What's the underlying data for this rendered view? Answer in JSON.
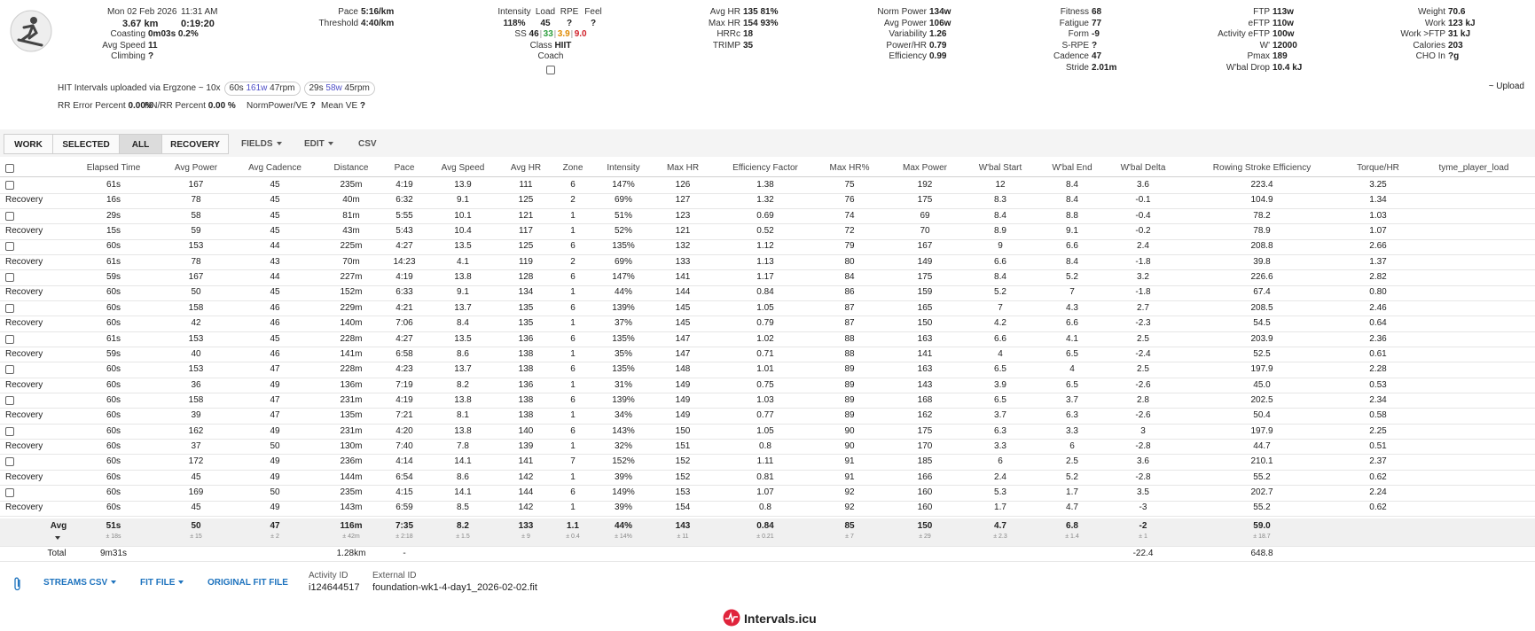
{
  "header": {
    "date": "Mon 02 Feb 2026",
    "time": "11:31 AM",
    "distance": "3.67 km",
    "duration": "0:19:20",
    "groups": [
      {
        "items": [
          {
            "label": "Coasting",
            "value": "0m03s 0.2%"
          },
          {
            "label": "Avg Speed",
            "value": "11"
          },
          {
            "label": "Climbing",
            "value": "?"
          }
        ]
      },
      {
        "items": [
          {
            "label": "Pace",
            "value": "5:16/km"
          },
          {
            "label": "Threshold",
            "value": "4:40/km"
          }
        ]
      },
      {
        "items": [
          {
            "label": "Avg HR",
            "value": "135 81%"
          },
          {
            "label": "Max HR",
            "value": "154 93%"
          },
          {
            "label": "HRRc",
            "value": "18"
          },
          {
            "label": "TRIMP",
            "value": "35"
          }
        ]
      },
      {
        "items": [
          {
            "label": "Norm Power",
            "value": "134w"
          },
          {
            "label": "Avg Power",
            "value": "106w"
          },
          {
            "label": "Variability",
            "value": "1.26"
          },
          {
            "label": "Power/HR",
            "value": "0.79"
          },
          {
            "label": "Efficiency",
            "value": "0.99"
          }
        ]
      },
      {
        "items": [
          {
            "label": "Fitness",
            "value": "68"
          },
          {
            "label": "Fatigue",
            "value": "77"
          },
          {
            "label": "Form",
            "value": "-9"
          },
          {
            "label": "S-RPE",
            "value": "?"
          },
          {
            "label": "Cadence",
            "value": "47"
          },
          {
            "label": "Stride",
            "value": "2.01m"
          }
        ]
      },
      {
        "items": [
          {
            "label": "FTP",
            "value": "113w"
          },
          {
            "label": "eFTP",
            "value": "110w"
          },
          {
            "label": "Activity eFTP",
            "value": "100w"
          },
          {
            "label": "W'",
            "value": "12000"
          },
          {
            "label": "Pmax",
            "value": "189"
          },
          {
            "label": "W'bal Drop",
            "value": "10.4 kJ"
          }
        ]
      },
      {
        "items": [
          {
            "label": "Weight",
            "value": "70.6"
          },
          {
            "label": "Work",
            "value": "123 kJ"
          },
          {
            "label": "Work >FTP",
            "value": "31 kJ"
          },
          {
            "label": "Calories",
            "value": "203"
          },
          {
            "label": "CHO In",
            "value": "?g"
          }
        ]
      }
    ],
    "effort": {
      "columns": [
        {
          "label": "Intensity",
          "value": "118%"
        },
        {
          "label": "Load",
          "value": "45"
        },
        {
          "label": "RPE",
          "value": "?"
        },
        {
          "label": "Feel",
          "value": "?"
        }
      ],
      "ss": {
        "label": "SS",
        "values": [
          "46",
          "33",
          "3.9",
          "9.0"
        ],
        "colors": [
          "#222222",
          "#2e9e3e",
          "#e08a00",
          "#d0202a"
        ]
      },
      "class": {
        "label": "Class",
        "value": "HIIT"
      },
      "coach": "Coach"
    }
  },
  "intervals": {
    "text": "HIT Intervals uploaded via Ergzone ~ 10x",
    "chips": [
      {
        "duration": "60s",
        "power": "161w",
        "cadence": "47rpm"
      },
      {
        "duration": "29s",
        "power": "58w",
        "cadence": "45rpm"
      }
    ],
    "upload": "~ Upload"
  },
  "hrv": [
    {
      "label": "RR Error Percent",
      "value": "0.00%"
    },
    {
      "label": "NN/RR Percent",
      "value": "0.00 %"
    },
    {
      "label": "NormPower/VE",
      "value": "?"
    },
    {
      "label": "Mean VE",
      "value": "?"
    }
  ],
  "tabs": {
    "buttons": [
      "WORK",
      "SELECTED",
      "ALL",
      "RECOVERY"
    ],
    "active": 2,
    "menus": [
      {
        "label": "FIELDS",
        "dropdown": true
      },
      {
        "label": "EDIT",
        "dropdown": true
      },
      {
        "label": "CSV",
        "dropdown": false
      }
    ]
  },
  "table": {
    "columns": [
      null,
      "Elapsed Time",
      "Avg Power",
      "Avg Cadence",
      "Distance",
      "Pace",
      "Avg Speed",
      "Avg HR",
      "Zone",
      "Intensity",
      "Max HR",
      "Efficiency Factor",
      "Max HR%",
      "Max Power",
      "W'bal Start",
      "W'bal End",
      "W'bal Delta",
      "Rowing Stroke Efficiency",
      "Torque/HR",
      "tyme_player_load"
    ],
    "rows": [
      [
        null,
        "61s",
        "167",
        "45",
        "235m",
        "4:19",
        "13.9",
        "111",
        "6",
        "147%",
        "126",
        "1.38",
        "75",
        "192",
        "12",
        "8.4",
        "3.6",
        "223.4",
        "3.25",
        null
      ],
      [
        "Recovery",
        "16s",
        "78",
        "45",
        "40m",
        "6:32",
        "9.1",
        "125",
        "2",
        "69%",
        "127",
        "1.32",
        "76",
        "175",
        "8.3",
        "8.4",
        "-0.1",
        "104.9",
        "1.34",
        null
      ],
      [
        null,
        "29s",
        "58",
        "45",
        "81m",
        "5:55",
        "10.1",
        "121",
        "1",
        "51%",
        "123",
        "0.69",
        "74",
        "69",
        "8.4",
        "8.8",
        "-0.4",
        "78.2",
        "1.03",
        null
      ],
      [
        "Recovery",
        "15s",
        "59",
        "45",
        "43m",
        "5:43",
        "10.4",
        "117",
        "1",
        "52%",
        "121",
        "0.52",
        "72",
        "70",
        "8.9",
        "9.1",
        "-0.2",
        "78.9",
        "1.07",
        null
      ],
      [
        null,
        "60s",
        "153",
        "44",
        "225m",
        "4:27",
        "13.5",
        "125",
        "6",
        "135%",
        "132",
        "1.12",
        "79",
        "167",
        "9",
        "6.6",
        "2.4",
        "208.8",
        "2.66",
        null
      ],
      [
        "Recovery",
        "61s",
        "78",
        "43",
        "70m",
        "14:23",
        "4.1",
        "119",
        "2",
        "69%",
        "133",
        "1.13",
        "80",
        "149",
        "6.6",
        "8.4",
        "-1.8",
        "39.8",
        "1.37",
        null
      ],
      [
        null,
        "59s",
        "167",
        "44",
        "227m",
        "4:19",
        "13.8",
        "128",
        "6",
        "147%",
        "141",
        "1.17",
        "84",
        "175",
        "8.4",
        "5.2",
        "3.2",
        "226.6",
        "2.82",
        null
      ],
      [
        "Recovery",
        "60s",
        "50",
        "45",
        "152m",
        "6:33",
        "9.1",
        "134",
        "1",
        "44%",
        "144",
        "0.84",
        "86",
        "159",
        "5.2",
        "7",
        "-1.8",
        "67.4",
        "0.80",
        null
      ],
      [
        null,
        "60s",
        "158",
        "46",
        "229m",
        "4:21",
        "13.7",
        "135",
        "6",
        "139%",
        "145",
        "1.05",
        "87",
        "165",
        "7",
        "4.3",
        "2.7",
        "208.5",
        "2.46",
        null
      ],
      [
        "Recovery",
        "60s",
        "42",
        "46",
        "140m",
        "7:06",
        "8.4",
        "135",
        "1",
        "37%",
        "145",
        "0.79",
        "87",
        "150",
        "4.2",
        "6.6",
        "-2.3",
        "54.5",
        "0.64",
        null
      ],
      [
        null,
        "61s",
        "153",
        "45",
        "228m",
        "4:27",
        "13.5",
        "136",
        "6",
        "135%",
        "147",
        "1.02",
        "88",
        "163",
        "6.6",
        "4.1",
        "2.5",
        "203.9",
        "2.36",
        null
      ],
      [
        "Recovery",
        "59s",
        "40",
        "46",
        "141m",
        "6:58",
        "8.6",
        "138",
        "1",
        "35%",
        "147",
        "0.71",
        "88",
        "141",
        "4",
        "6.5",
        "-2.4",
        "52.5",
        "0.61",
        null
      ],
      [
        null,
        "60s",
        "153",
        "47",
        "228m",
        "4:23",
        "13.7",
        "138",
        "6",
        "135%",
        "148",
        "1.01",
        "89",
        "163",
        "6.5",
        "4",
        "2.5",
        "197.9",
        "2.28",
        null
      ],
      [
        "Recovery",
        "60s",
        "36",
        "49",
        "136m",
        "7:19",
        "8.2",
        "136",
        "1",
        "31%",
        "149",
        "0.75",
        "89",
        "143",
        "3.9",
        "6.5",
        "-2.6",
        "45.0",
        "0.53",
        null
      ],
      [
        null,
        "60s",
        "158",
        "47",
        "231m",
        "4:19",
        "13.8",
        "138",
        "6",
        "139%",
        "149",
        "1.03",
        "89",
        "168",
        "6.5",
        "3.7",
        "2.8",
        "202.5",
        "2.34",
        null
      ],
      [
        "Recovery",
        "60s",
        "39",
        "47",
        "135m",
        "7:21",
        "8.1",
        "138",
        "1",
        "34%",
        "149",
        "0.77",
        "89",
        "162",
        "3.7",
        "6.3",
        "-2.6",
        "50.4",
        "0.58",
        null
      ],
      [
        null,
        "60s",
        "162",
        "49",
        "231m",
        "4:20",
        "13.8",
        "140",
        "6",
        "143%",
        "150",
        "1.05",
        "90",
        "175",
        "6.3",
        "3.3",
        "3",
        "197.9",
        "2.25",
        null
      ],
      [
        "Recovery",
        "60s",
        "37",
        "50",
        "130m",
        "7:40",
        "7.8",
        "139",
        "1",
        "32%",
        "151",
        "0.8",
        "90",
        "170",
        "3.3",
        "6",
        "-2.8",
        "44.7",
        "0.51",
        null
      ],
      [
        null,
        "60s",
        "172",
        "49",
        "236m",
        "4:14",
        "14.1",
        "141",
        "7",
        "152%",
        "152",
        "1.11",
        "91",
        "185",
        "6",
        "2.5",
        "3.6",
        "210.1",
        "2.37",
        null
      ],
      [
        "Recovery",
        "60s",
        "45",
        "49",
        "144m",
        "6:54",
        "8.6",
        "142",
        "1",
        "39%",
        "152",
        "0.81",
        "91",
        "166",
        "2.4",
        "5.2",
        "-2.8",
        "55.2",
        "0.62",
        null
      ],
      [
        null,
        "60s",
        "169",
        "50",
        "235m",
        "4:15",
        "14.1",
        "144",
        "6",
        "149%",
        "153",
        "1.07",
        "92",
        "160",
        "5.3",
        "1.7",
        "3.5",
        "202.7",
        "2.24",
        null
      ],
      [
        "Recovery",
        "60s",
        "45",
        "49",
        "143m",
        "6:59",
        "8.5",
        "142",
        "1",
        "39%",
        "154",
        "0.8",
        "92",
        "160",
        "1.7",
        "4.7",
        "-3",
        "55.2",
        "0.62",
        null
      ]
    ],
    "avg": {
      "values": [
        "Avg",
        "51s",
        "50",
        "47",
        "116m",
        "7:35",
        "8.2",
        "133",
        "1.1",
        "44%",
        "143",
        "0.84",
        "85",
        "150",
        "4.7",
        "6.8",
        "-2",
        "59.0",
        null,
        null
      ],
      "spread": [
        null,
        "± 18s",
        "± 15",
        "± 2",
        "± 42m",
        "± 2:18",
        "± 1.5",
        "± 9",
        "± 0.4",
        "± 14%",
        "± 11",
        "± 0.21",
        "± 7",
        "± 29",
        "± 2.3",
        "± 1.4",
        "± 1",
        "± 18.7",
        null,
        null
      ]
    },
    "total": [
      "Total",
      "9m31s",
      null,
      null,
      "1.28km",
      "-",
      null,
      null,
      null,
      null,
      null,
      null,
      null,
      null,
      null,
      null,
      "-22.4",
      "648.8",
      null,
      null
    ]
  },
  "footer": {
    "links": [
      {
        "label": "STREAMS CSV",
        "dropdown": true
      },
      {
        "label": "FIT FILE",
        "dropdown": true
      },
      {
        "label": "ORIGINAL FIT FILE",
        "dropdown": false
      }
    ],
    "activity_id": {
      "label": "Activity ID",
      "value": "i124644517"
    },
    "external_id": {
      "label": "External ID",
      "value": "foundation-wk1-4-day1_2026-02-02.fit"
    },
    "brand": "Intervals.icu"
  }
}
